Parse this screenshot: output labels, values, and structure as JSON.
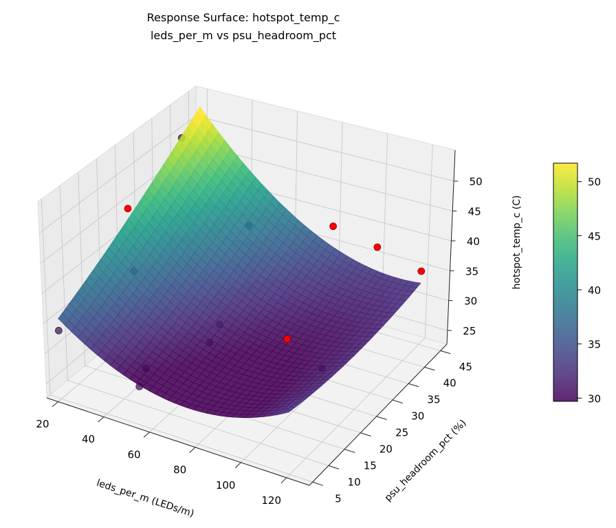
{
  "chart_data": {
    "type": "surface",
    "title": "Response Surface: hotspot_temp_c",
    "subtitle": "leds_per_m vs psu_headroom_pct",
    "xlabel": "leds_per_m (LEDs/m)",
    "ylabel": "psu_headroom_pct (%)",
    "zlabel": "hotspot_temp_c (C)",
    "xlim": [
      15,
      130
    ],
    "ylim": [
      4,
      47
    ],
    "zlim": [
      22.7,
      55.2
    ],
    "xticks": [
      20,
      40,
      60,
      80,
      100,
      120
    ],
    "yticks": [
      5,
      10,
      15,
      20,
      25,
      30,
      35,
      40,
      45
    ],
    "zticks": [
      25,
      30,
      35,
      40,
      45,
      50
    ],
    "colormap": "viridis",
    "grid": true,
    "colorbar": {
      "label": "hotspot_temp_c (C)",
      "range": [
        29.7,
        51.7
      ],
      "ticks": [
        30,
        35,
        40,
        45,
        50
      ]
    },
    "surface_fit": {
      "x_range": [
        20,
        120
      ],
      "y_range": [
        5,
        45
      ],
      "z_min": 28,
      "z_max": 53
    },
    "points": [
      {
        "x": 20,
        "y": 40,
        "z": 50
      },
      {
        "x": 20,
        "y": 25,
        "z": 45
      },
      {
        "x": 30,
        "y": 20,
        "z": 38
      },
      {
        "x": 20,
        "y": 5,
        "z": 34
      },
      {
        "x": 50,
        "y": 40,
        "z": 38
      },
      {
        "x": 80,
        "y": 45,
        "z": 38.5
      },
      {
        "x": 100,
        "y": 45,
        "z": 37
      },
      {
        "x": 120,
        "y": 45,
        "z": 35
      },
      {
        "x": 60,
        "y": 25,
        "z": 30
      },
      {
        "x": 60,
        "y": 22,
        "z": 28.5
      },
      {
        "x": 50,
        "y": 10,
        "z": 29
      },
      {
        "x": 50,
        "y": 8,
        "z": 27
      },
      {
        "x": 90,
        "y": 25,
        "z": 31
      },
      {
        "x": 110,
        "y": 22,
        "z": 30
      }
    ],
    "colors": {
      "above_surface_point": "#ff0000",
      "below_surface_point": "#3b1e5a"
    }
  }
}
